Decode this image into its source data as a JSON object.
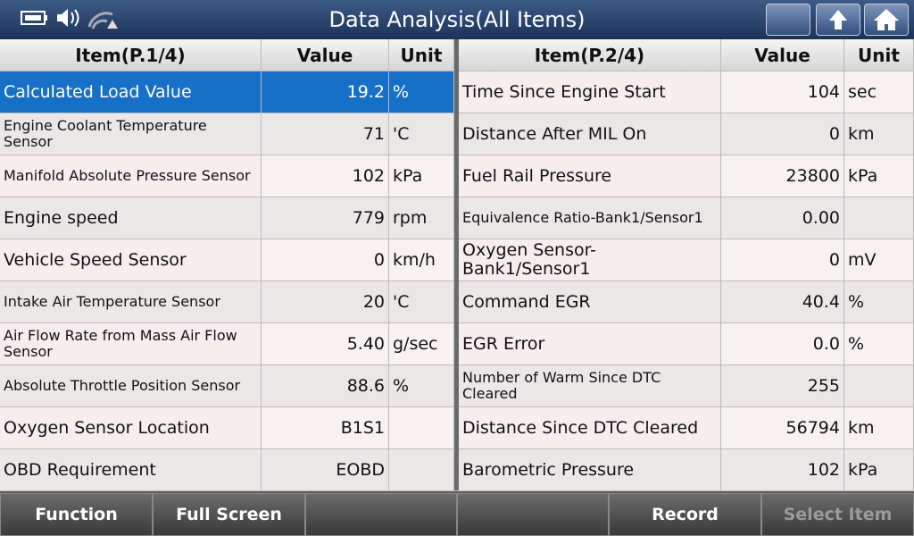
{
  "header": {
    "title": "Data Analysis(All Items)"
  },
  "tables": [
    {
      "columns": [
        "Item(P.1/4)",
        "Value",
        "Unit"
      ],
      "rows": [
        [
          "Calculated Load Value",
          "19.2",
          "%"
        ],
        [
          "Engine Coolant Temperature Sensor",
          "71",
          "'C"
        ],
        [
          "Manifold Absolute Pressure Sensor",
          "102",
          "kPa"
        ],
        [
          "Engine speed",
          "779",
          "rpm"
        ],
        [
          "Vehicle Speed Sensor",
          "0",
          "km/h"
        ],
        [
          "Intake Air Temperature Sensor",
          "20",
          "'C"
        ],
        [
          "Air Flow Rate from Mass Air Flow Sensor",
          "5.40",
          "g/sec"
        ],
        [
          "Absolute Throttle Position Sensor",
          "88.6",
          "%"
        ],
        [
          "Oxygen Sensor Location",
          "B1S1"
        ],
        [
          "OBD Requirement",
          "EOBD"
        ]
      ]
    },
    {
      "columns": [
        "Item(P.2/4)",
        "Value",
        "Unit"
      ],
      "rows": [
        [
          "Time Since Engine Start",
          "104",
          "sec"
        ],
        [
          "Distance After MIL On",
          "0",
          "km"
        ],
        [
          "Fuel Rail Pressure",
          "23800",
          "kPa"
        ],
        [
          "Equivalence Ratio-Bank1/Sensor1",
          "0.00"
        ],
        [
          "Oxygen Sensor-Bank1/Sensor1",
          "0",
          "mV"
        ],
        [
          "Command EGR",
          "40.4",
          "%"
        ],
        [
          "EGR Error",
          "0.0",
          "%"
        ],
        [
          "Number of Warm Since DTC Cleared",
          "255"
        ],
        [
          "Distance Since DTC Cleared",
          "56794",
          "km"
        ],
        [
          "Barometric Pressure",
          "102",
          "kPa"
        ]
      ]
    }
  ],
  "footer": {
    "buttons": [
      "Function",
      "Full Screen",
      "Record",
      "Select Item"
    ]
  }
}
